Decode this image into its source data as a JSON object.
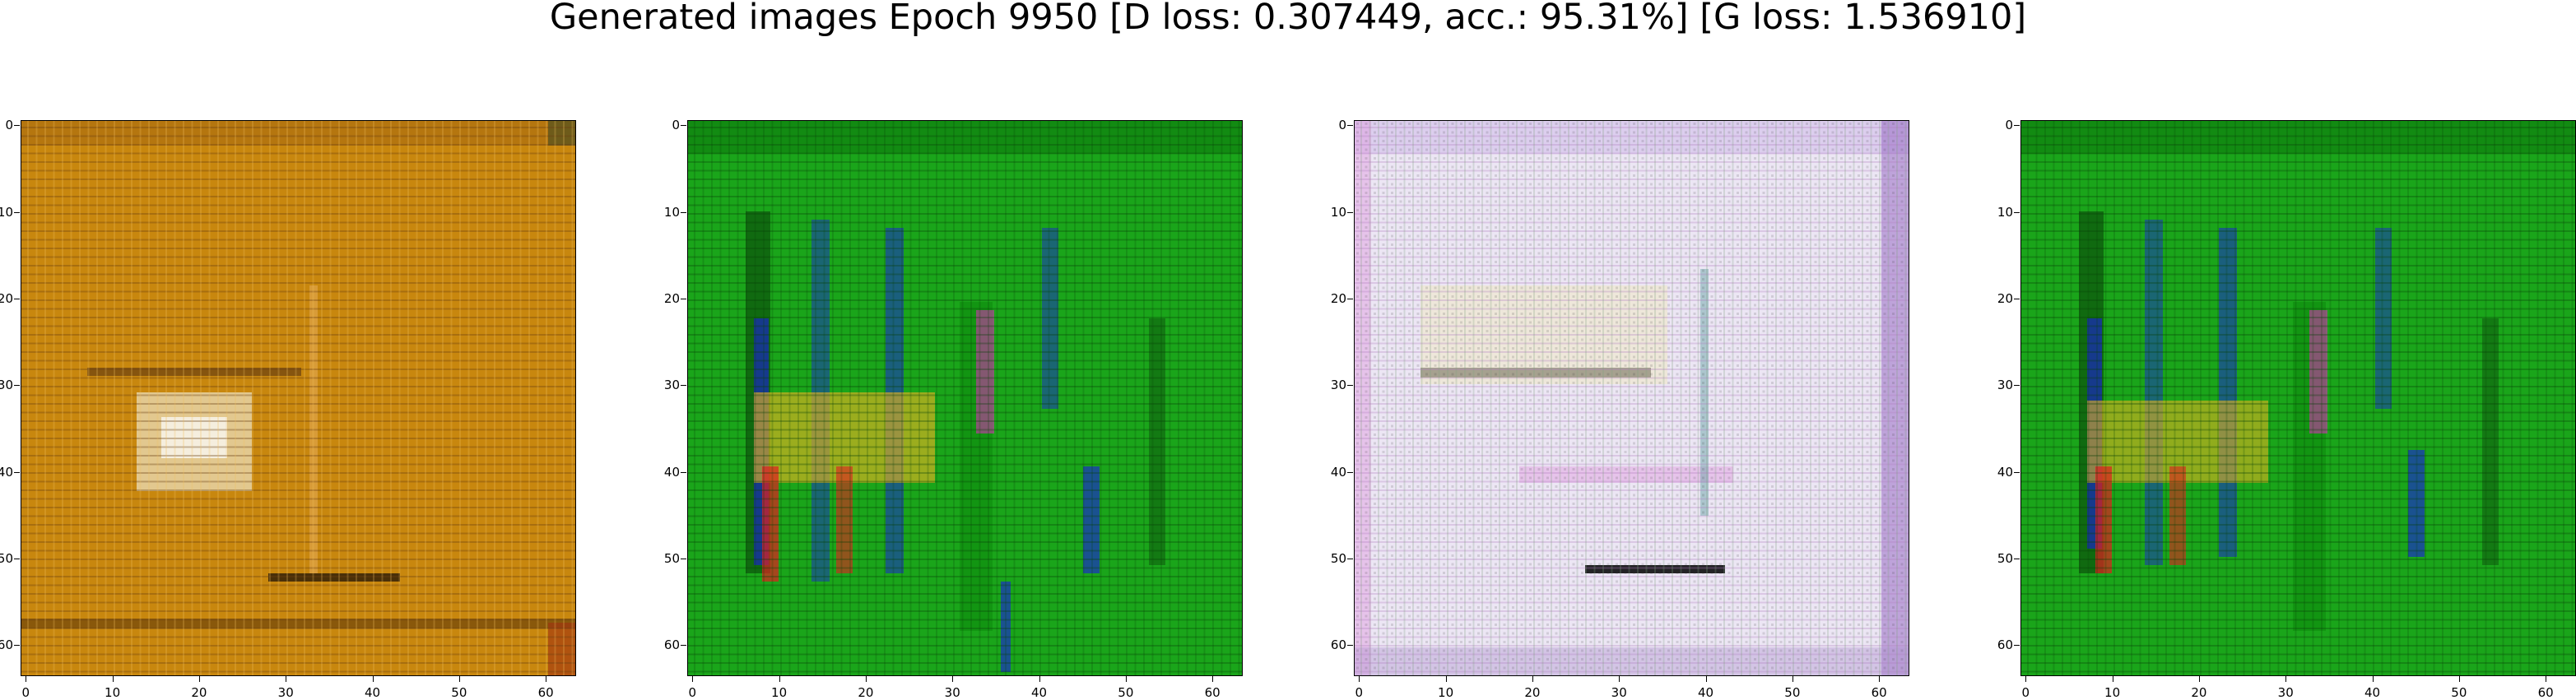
{
  "title": "Generated images Epoch 9950 [D loss: 0.307449, acc.: 95.31%] [G loss: 1.536910]",
  "axes": {
    "x_ticks": [
      "0",
      "10",
      "20",
      "30",
      "40",
      "50",
      "60"
    ],
    "y_ticks": [
      "0",
      "10",
      "20",
      "30",
      "40",
      "50",
      "60"
    ],
    "range": [
      -0.5,
      63.5
    ]
  },
  "images": [
    {
      "name": "orange-sample",
      "palette": {
        "base": "#c8870e",
        "dark": "#5a3410",
        "light": "#e8c890",
        "accent": "#f0f0f0"
      }
    },
    {
      "name": "green-sample-a",
      "palette": {
        "base": "#1aa51a",
        "dark": "#0a3a0a",
        "red": "#e02020",
        "blue": "#1a1ae0",
        "yellow": "#e0b020",
        "magenta": "#d030b0"
      }
    },
    {
      "name": "pale-sample",
      "palette": {
        "base": "#ece6f4",
        "dark": "#202020",
        "pink": "#e0a0e0",
        "purple": "#9060c0",
        "cream": "#f0e8c0",
        "teal": "#60a0a0"
      }
    },
    {
      "name": "green-sample-b",
      "palette": {
        "base": "#1aa51a",
        "dark": "#0a3a0a",
        "red": "#e02020",
        "blue": "#1a1ae0",
        "yellow": "#e0b020",
        "magenta": "#d030b0"
      }
    }
  ]
}
